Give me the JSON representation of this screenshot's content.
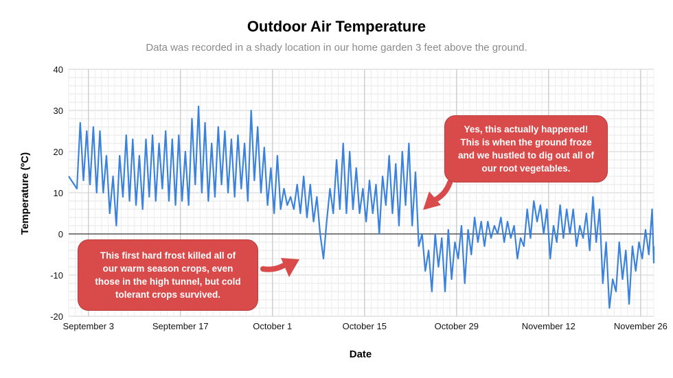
{
  "chart_data": {
    "type": "line",
    "title": "Outdoor Air Temperature",
    "subtitle": "Data was recorded in a shady location in our home garden 3 feet above the ground.",
    "xlabel": "Date",
    "ylabel": "Temperature (ºC)",
    "ylim": [
      -20,
      40
    ],
    "yticks": [
      40,
      30,
      20,
      10,
      0,
      -10,
      -20
    ],
    "xlim": [
      "2023-08-31",
      "2023-11-28"
    ],
    "xticks": [
      "September 3",
      "September 17",
      "October 1",
      "October 15",
      "October 29",
      "November 12",
      "November 26"
    ],
    "grid": true,
    "line_color": "#3b82dc",
    "callout_color": "#d94a4a",
    "series": [
      {
        "values": [
          [
            "2023-08-31",
            14
          ],
          [
            "2023-09-01",
            11
          ],
          [
            "2023-09-01",
            27
          ],
          [
            "2023-09-02",
            13
          ],
          [
            "2023-09-02",
            25
          ],
          [
            "2023-09-03",
            12
          ],
          [
            "2023-09-03",
            26
          ],
          [
            "2023-09-04",
            10
          ],
          [
            "2023-09-04",
            25
          ],
          [
            "2023-09-05",
            10
          ],
          [
            "2023-09-05",
            19
          ],
          [
            "2023-09-06",
            5
          ],
          [
            "2023-09-06",
            14
          ],
          [
            "2023-09-07",
            2
          ],
          [
            "2023-09-07",
            19
          ],
          [
            "2023-09-08",
            9
          ],
          [
            "2023-09-08",
            24
          ],
          [
            "2023-09-09",
            8
          ],
          [
            "2023-09-09",
            23
          ],
          [
            "2023-09-10",
            7
          ],
          [
            "2023-09-10",
            19
          ],
          [
            "2023-09-11",
            6
          ],
          [
            "2023-09-11",
            23
          ],
          [
            "2023-09-12",
            9
          ],
          [
            "2023-09-12",
            24
          ],
          [
            "2023-09-13",
            8
          ],
          [
            "2023-09-13",
            22
          ],
          [
            "2023-09-14",
            11
          ],
          [
            "2023-09-14",
            25
          ],
          [
            "2023-09-15",
            8
          ],
          [
            "2023-09-15",
            23
          ],
          [
            "2023-09-16",
            7
          ],
          [
            "2023-09-16",
            24
          ],
          [
            "2023-09-17",
            8
          ],
          [
            "2023-09-17",
            20
          ],
          [
            "2023-09-18",
            7
          ],
          [
            "2023-09-18",
            28
          ],
          [
            "2023-09-19",
            12
          ],
          [
            "2023-09-19",
            31
          ],
          [
            "2023-09-20",
            10
          ],
          [
            "2023-09-20",
            27
          ],
          [
            "2023-09-21",
            8
          ],
          [
            "2023-09-21",
            22
          ],
          [
            "2023-09-22",
            9
          ],
          [
            "2023-09-22",
            26
          ],
          [
            "2023-09-23",
            12
          ],
          [
            "2023-09-23",
            25
          ],
          [
            "2023-09-24",
            10
          ],
          [
            "2023-09-24",
            23
          ],
          [
            "2023-09-25",
            9
          ],
          [
            "2023-09-25",
            24
          ],
          [
            "2023-09-26",
            11
          ],
          [
            "2023-09-26",
            22
          ],
          [
            "2023-09-27",
            8
          ],
          [
            "2023-09-27",
            30
          ],
          [
            "2023-09-28",
            13
          ],
          [
            "2023-09-28",
            26
          ],
          [
            "2023-09-29",
            10
          ],
          [
            "2023-09-29",
            21
          ],
          [
            "2023-09-30",
            7
          ],
          [
            "2023-09-30",
            16
          ],
          [
            "2023-10-01",
            5
          ],
          [
            "2023-10-01",
            19
          ],
          [
            "2023-10-02",
            6
          ],
          [
            "2023-10-02",
            11
          ],
          [
            "2023-10-03",
            7
          ],
          [
            "2023-10-03",
            9
          ],
          [
            "2023-10-04",
            6
          ],
          [
            "2023-10-04",
            12
          ],
          [
            "2023-10-05",
            5
          ],
          [
            "2023-10-05",
            14
          ],
          [
            "2023-10-06",
            4
          ],
          [
            "2023-10-06",
            12
          ],
          [
            "2023-10-07",
            3
          ],
          [
            "2023-10-07",
            9
          ],
          [
            "2023-10-08",
            0
          ],
          [
            "2023-10-08",
            -6
          ],
          [
            "2023-10-09",
            3
          ],
          [
            "2023-10-09",
            11
          ],
          [
            "2023-10-10",
            5
          ],
          [
            "2023-10-10",
            18
          ],
          [
            "2023-10-11",
            6
          ],
          [
            "2023-10-11",
            22
          ],
          [
            "2023-10-12",
            5
          ],
          [
            "2023-10-12",
            20
          ],
          [
            "2023-10-13",
            6
          ],
          [
            "2023-10-13",
            16
          ],
          [
            "2023-10-14",
            5
          ],
          [
            "2023-10-14",
            11
          ],
          [
            "2023-10-15",
            3
          ],
          [
            "2023-10-15",
            13
          ],
          [
            "2023-10-16",
            5
          ],
          [
            "2023-10-16",
            12
          ],
          [
            "2023-10-17",
            0
          ],
          [
            "2023-10-17",
            14
          ],
          [
            "2023-10-18",
            7
          ],
          [
            "2023-10-18",
            19
          ],
          [
            "2023-10-19",
            5
          ],
          [
            "2023-10-19",
            17
          ],
          [
            "2023-10-20",
            2
          ],
          [
            "2023-10-20",
            20
          ],
          [
            "2023-10-21",
            7
          ],
          [
            "2023-10-21",
            22
          ],
          [
            "2023-10-22",
            2
          ],
          [
            "2023-10-22",
            15
          ],
          [
            "2023-10-23",
            -3
          ],
          [
            "2023-10-23",
            0
          ],
          [
            "2023-10-24",
            -9
          ],
          [
            "2023-10-24",
            -4
          ],
          [
            "2023-10-25",
            -14
          ],
          [
            "2023-10-25",
            0
          ],
          [
            "2023-10-26",
            -8
          ],
          [
            "2023-10-26",
            -1
          ],
          [
            "2023-10-27",
            -14
          ],
          [
            "2023-10-27",
            1
          ],
          [
            "2023-10-28",
            -11
          ],
          [
            "2023-10-28",
            -2
          ],
          [
            "2023-10-29",
            -6
          ],
          [
            "2023-10-29",
            2
          ],
          [
            "2023-10-30",
            -12
          ],
          [
            "2023-10-30",
            1
          ],
          [
            "2023-10-31",
            -5
          ],
          [
            "2023-10-31",
            4
          ],
          [
            "2023-11-01",
            -2
          ],
          [
            "2023-11-01",
            3
          ],
          [
            "2023-11-02",
            -3
          ],
          [
            "2023-11-02",
            3
          ],
          [
            "2023-11-03",
            -1
          ],
          [
            "2023-11-03",
            2
          ],
          [
            "2023-11-04",
            0
          ],
          [
            "2023-11-04",
            4
          ],
          [
            "2023-11-05",
            -2
          ],
          [
            "2023-11-05",
            3
          ],
          [
            "2023-11-06",
            -1
          ],
          [
            "2023-11-06",
            2
          ],
          [
            "2023-11-07",
            -6
          ],
          [
            "2023-11-07",
            -1
          ],
          [
            "2023-11-08",
            -3
          ],
          [
            "2023-11-08",
            6
          ],
          [
            "2023-11-09",
            -1
          ],
          [
            "2023-11-09",
            8
          ],
          [
            "2023-11-10",
            3
          ],
          [
            "2023-11-10",
            7
          ],
          [
            "2023-11-11",
            0
          ],
          [
            "2023-11-11",
            6
          ],
          [
            "2023-11-12",
            -6
          ],
          [
            "2023-11-12",
            2
          ],
          [
            "2023-11-13",
            -2
          ],
          [
            "2023-11-13",
            7
          ],
          [
            "2023-11-14",
            -1
          ],
          [
            "2023-11-14",
            6
          ],
          [
            "2023-11-15",
            0
          ],
          [
            "2023-11-15",
            6
          ],
          [
            "2023-11-16",
            -3
          ],
          [
            "2023-11-16",
            2
          ],
          [
            "2023-11-17",
            -1
          ],
          [
            "2023-11-17",
            5
          ],
          [
            "2023-11-18",
            -4
          ],
          [
            "2023-11-18",
            9
          ],
          [
            "2023-11-19",
            -2
          ],
          [
            "2023-11-19",
            6
          ],
          [
            "2023-11-20",
            -12
          ],
          [
            "2023-11-20",
            -2
          ],
          [
            "2023-11-21",
            -18
          ],
          [
            "2023-11-21",
            -11
          ],
          [
            "2023-11-22",
            -14
          ],
          [
            "2023-11-22",
            -2
          ],
          [
            "2023-11-23",
            -11
          ],
          [
            "2023-11-23",
            -4
          ],
          [
            "2023-11-24",
            -17
          ],
          [
            "2023-11-24",
            -3
          ],
          [
            "2023-11-25",
            -9
          ],
          [
            "2023-11-25",
            -2
          ],
          [
            "2023-11-26",
            -6
          ],
          [
            "2023-11-26",
            1
          ],
          [
            "2023-11-27",
            -5
          ],
          [
            "2023-11-27",
            6
          ],
          [
            "2023-11-28",
            -7
          ],
          [
            "2023-11-28",
            -3
          ]
        ]
      }
    ],
    "annotations": [
      {
        "text": "This first hard frost killed all of\nour warm season crops, even\nthose in the high tunnel, but cold\ntolerant crops survived.",
        "points_to": [
          "2023-10-08",
          -6
        ]
      },
      {
        "text": "Yes, this actually happened!\nThis is when the ground froze\nand we hustled to dig out all of\nour root vegetables.",
        "points_to": [
          "2023-10-24",
          6
        ]
      }
    ]
  }
}
